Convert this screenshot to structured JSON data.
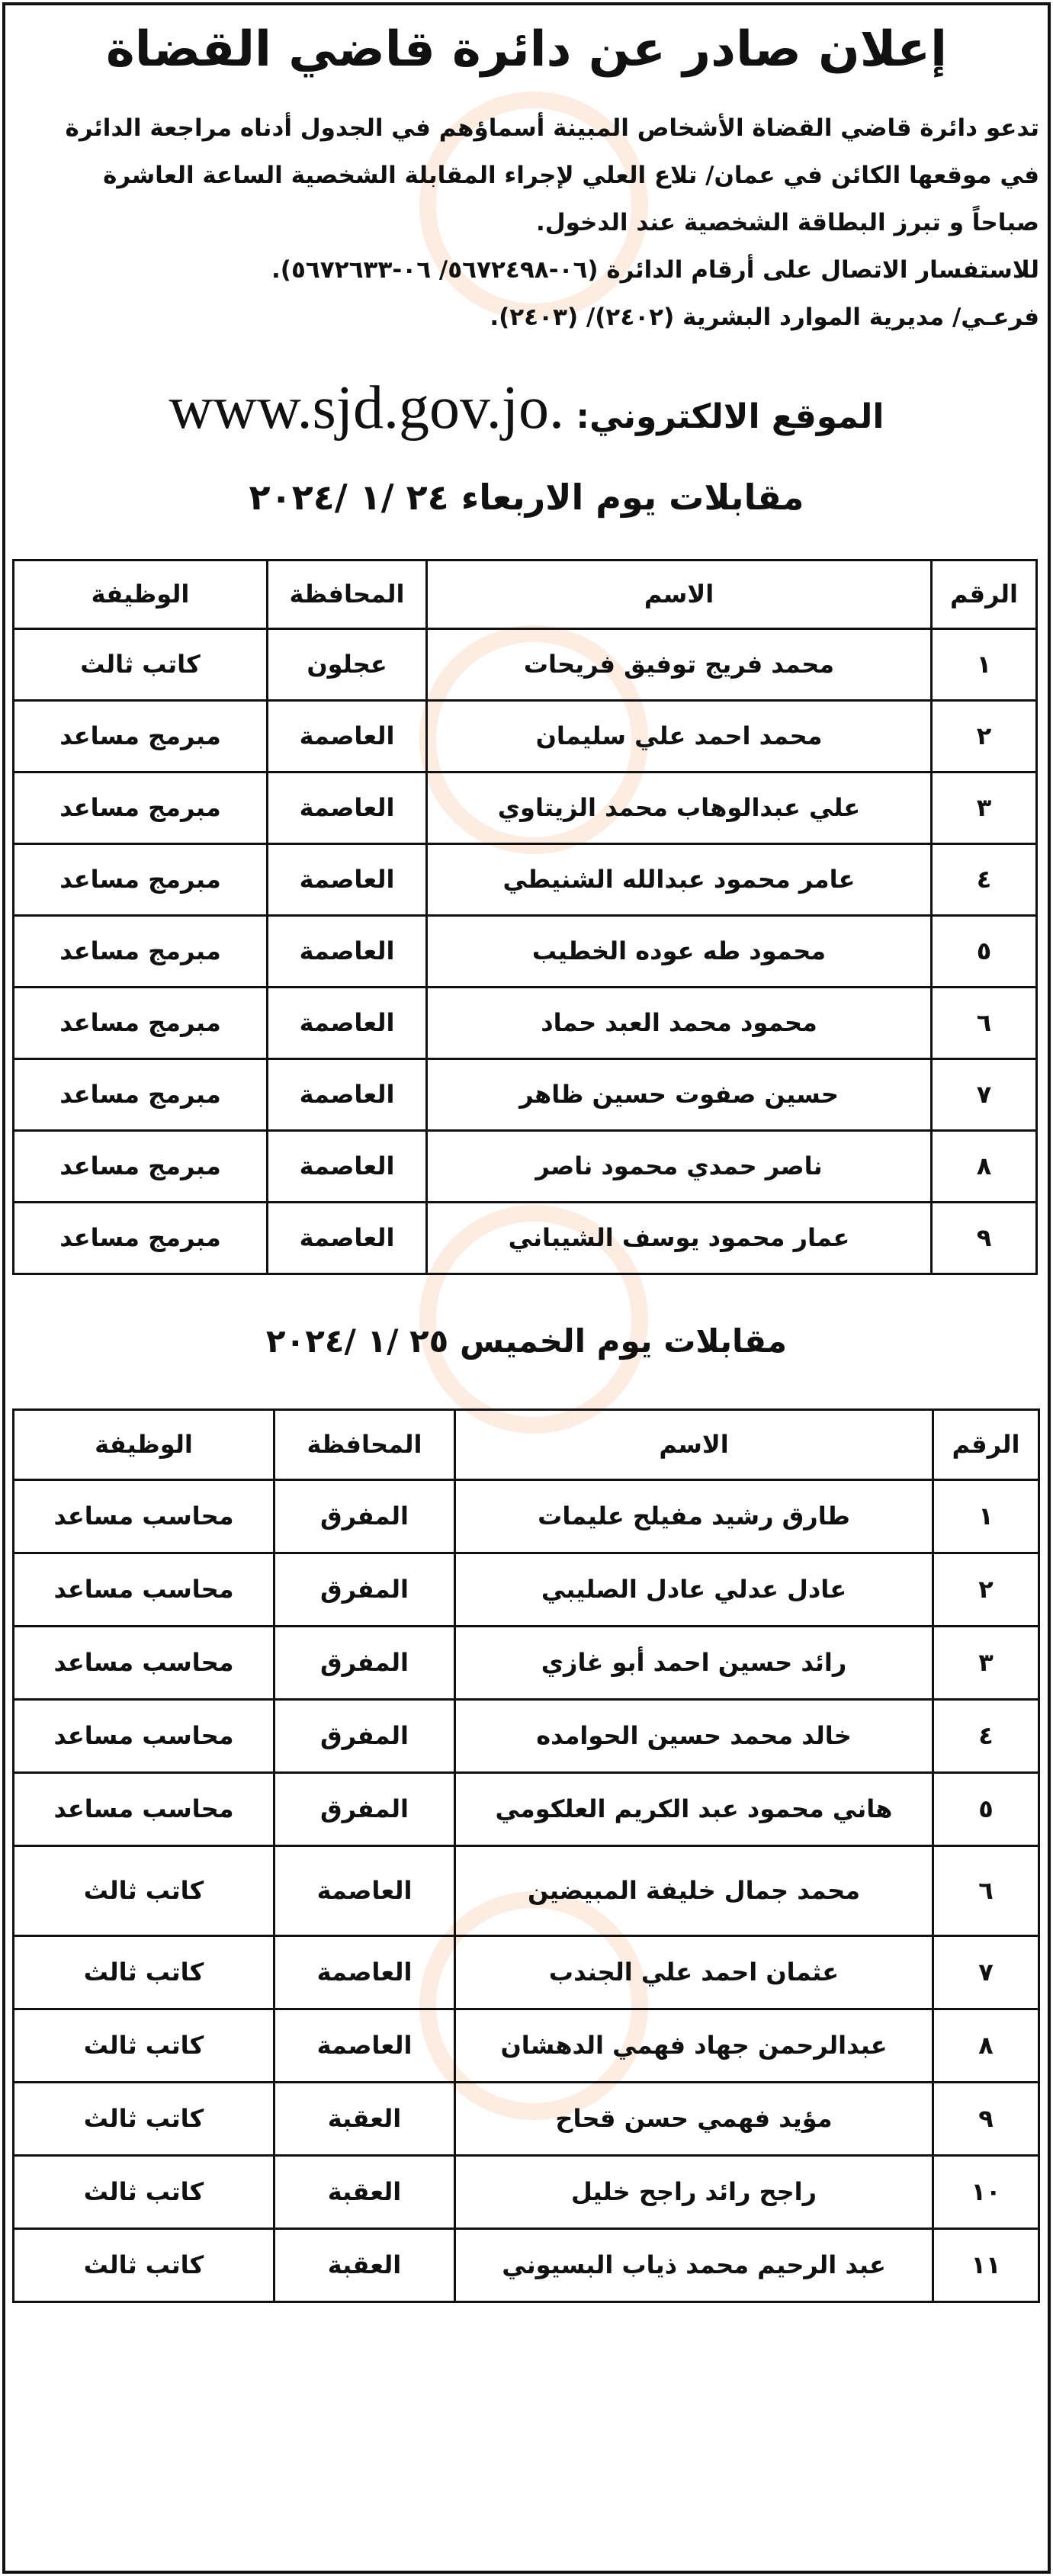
{
  "title": "إعلان صادر عن دائرة قاضي القضاة",
  "body_lines": [
    "تدعو دائرة قاضي القضاة الأشخاص المبينة أسماؤهم في الجدول أدناه مراجعة الدائرة",
    "في موقعها الكائن في عمان/ تلاع العلي لإجراء المقابلة الشخصية الساعة العاشرة",
    "صباحاً  و تبرز البطاقة الشخصية عند الدخول.",
    "للاستفسار الاتصال على أرقام الدائرة (٠٦-٥٦٧٢٤٩٨/ ٠٦-٥٦٧٢٦٣٣).",
    "فرعـي/ مديرية الموارد البشرية (٢٤٠٢)/ (٢٤٠٣)."
  ],
  "website": {
    "label": "الموقع الالكتروني:",
    "url": "www.sjd.gov.jo."
  },
  "headers": [
    "الرقم",
    "الاسم",
    "المحافظة",
    "الوظيفة"
  ],
  "day1": {
    "heading": "مقابلات يوم الاربعاء ٢٤ /١ /٢٠٢٤",
    "rows": [
      [
        "١",
        "محمد فريج توفيق فريحات",
        "عجلون",
        "كاتب ثالث"
      ],
      [
        "٢",
        "محمد احمد علي سليمان",
        "العاصمة",
        "مبرمج مساعد"
      ],
      [
        "٣",
        "علي عبدالوهاب محمد الزيتاوي",
        "العاصمة",
        "مبرمج مساعد"
      ],
      [
        "٤",
        "عامر محمود عبدالله الشنيطي",
        "العاصمة",
        "مبرمج مساعد"
      ],
      [
        "٥",
        "محمود طه عوده الخطيب",
        "العاصمة",
        "مبرمج مساعد"
      ],
      [
        "٦",
        "محمود محمد العبد حماد",
        "العاصمة",
        "مبرمج مساعد"
      ],
      [
        "٧",
        "حسين صفوت حسين ظاهر",
        "العاصمة",
        "مبرمج مساعد"
      ],
      [
        "٨",
        "ناصر حمدي محمود ناصر",
        "العاصمة",
        "مبرمج مساعد"
      ],
      [
        "٩",
        "عمار محمود يوسف الشيباني",
        "العاصمة",
        "مبرمج مساعد"
      ]
    ]
  },
  "day2": {
    "heading": "مقابلات يوم الخميس ٢٥ /١ /٢٠٢٤",
    "rows": [
      [
        "١",
        "طارق رشيد مفيلح عليمات",
        "المفرق",
        "محاسب مساعد"
      ],
      [
        "٢",
        "عادل عدلي عادل الصليبي",
        "المفرق",
        "محاسب مساعد"
      ],
      [
        "٣",
        "رائد حسين احمد أبو غازي",
        "المفرق",
        "محاسب مساعد"
      ],
      [
        "٤",
        "خالد محمد حسين الحوامده",
        "المفرق",
        "محاسب مساعد"
      ],
      [
        "٥",
        "هاني محمود عبد الكريم العلكومي",
        "المفرق",
        "محاسب مساعد"
      ],
      [
        "٦",
        "محمد جمال خليفة المبيضين",
        "العاصمة",
        "كاتب ثالث"
      ],
      [
        "٧",
        "عثمان احمد علي الجندب",
        "العاصمة",
        "كاتب ثالث"
      ],
      [
        "٨",
        "عبدالرحمن جهاد فهمي الدهشان",
        "العاصمة",
        "كاتب ثالث"
      ],
      [
        "٩",
        "مؤيد فهمي حسن قحاح",
        "العقبة",
        "كاتب ثالث"
      ],
      [
        "١٠",
        "راجح رائد راجح خليل",
        "العقبة",
        "كاتب ثالث"
      ],
      [
        "١١",
        "عبد الرحيم محمد ذياب البسيوني",
        "العقبة",
        "كاتب ثالث"
      ]
    ]
  }
}
